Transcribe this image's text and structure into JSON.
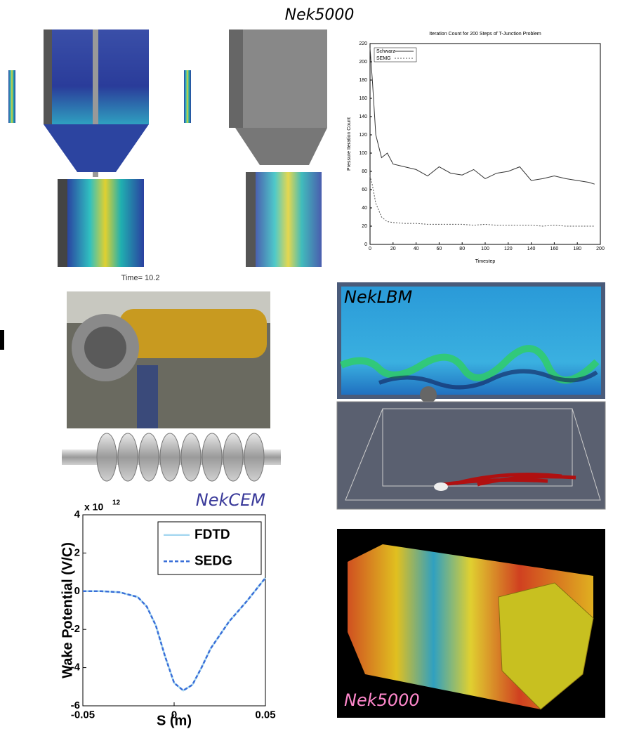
{
  "labels": {
    "top_title": "Nek5000",
    "time_label": "Time= 10.2",
    "lbm_label": "NekLBM",
    "cem_label": "NekCEM",
    "bottom_label": "Nek5000"
  },
  "chart_data": [
    {
      "type": "line",
      "title": "Iteration Count for 200 Steps of T-Junction Problem",
      "xlabel": "Timestep",
      "ylabel": "Pressure Iteration Count",
      "x": [
        0,
        2,
        5,
        10,
        15,
        20,
        30,
        40,
        50,
        60,
        70,
        80,
        90,
        100,
        110,
        120,
        130,
        140,
        150,
        160,
        170,
        180,
        190,
        195
      ],
      "series": [
        {
          "name": "Schwarz",
          "color": "#333333",
          "style": "solid",
          "values": [
            215,
            180,
            120,
            95,
            100,
            88,
            85,
            82,
            75,
            85,
            78,
            76,
            82,
            72,
            78,
            80,
            85,
            70,
            72,
            75,
            72,
            70,
            68,
            66
          ]
        },
        {
          "name": "SEMG",
          "color": "#555555",
          "style": "dashed",
          "values": [
            75,
            65,
            45,
            30,
            25,
            24,
            23,
            23,
            22,
            22,
            22,
            22,
            21,
            22,
            21,
            21,
            21,
            21,
            20,
            21,
            20,
            20,
            20,
            20
          ]
        }
      ],
      "xlim": [
        0,
        200
      ],
      "ylim": [
        0,
        220
      ],
      "xticks": [
        0,
        20,
        40,
        60,
        80,
        100,
        120,
        140,
        160,
        180,
        200
      ],
      "yticks": [
        0,
        20,
        40,
        60,
        80,
        100,
        120,
        140,
        160,
        180,
        200,
        220
      ],
      "legend": "upper left"
    },
    {
      "type": "line",
      "xlabel": "S (m)",
      "ylabel": "Wake Potential (V/C)",
      "multiplier": "x 10",
      "multiplier_exponent": "12",
      "x": [
        -0.05,
        -0.04,
        -0.03,
        -0.02,
        -0.015,
        -0.01,
        -0.005,
        0,
        0.005,
        0.01,
        0.015,
        0.02,
        0.03,
        0.04,
        0.05
      ],
      "series": [
        {
          "name": "FDTD",
          "color": "#a8d8f0",
          "style": "solid",
          "values": [
            0,
            0,
            -0.05,
            -0.3,
            -0.8,
            -1.8,
            -3.4,
            -4.8,
            -5.2,
            -4.9,
            -4.0,
            -3.0,
            -1.6,
            -0.5,
            0.7
          ]
        },
        {
          "name": "SEDG",
          "color": "#3a6fd8",
          "style": "dashed",
          "values": [
            0,
            0,
            -0.05,
            -0.3,
            -0.8,
            -1.8,
            -3.4,
            -4.8,
            -5.2,
            -4.9,
            -4.0,
            -3.0,
            -1.6,
            -0.5,
            0.7
          ]
        }
      ],
      "xlim": [
        -0.05,
        0.05
      ],
      "ylim": [
        -6,
        4
      ],
      "xticks": [
        -0.05,
        0,
        0.05
      ],
      "yticks": [
        -6,
        -4,
        -2,
        0,
        2,
        4
      ],
      "legend": "upper right"
    }
  ]
}
